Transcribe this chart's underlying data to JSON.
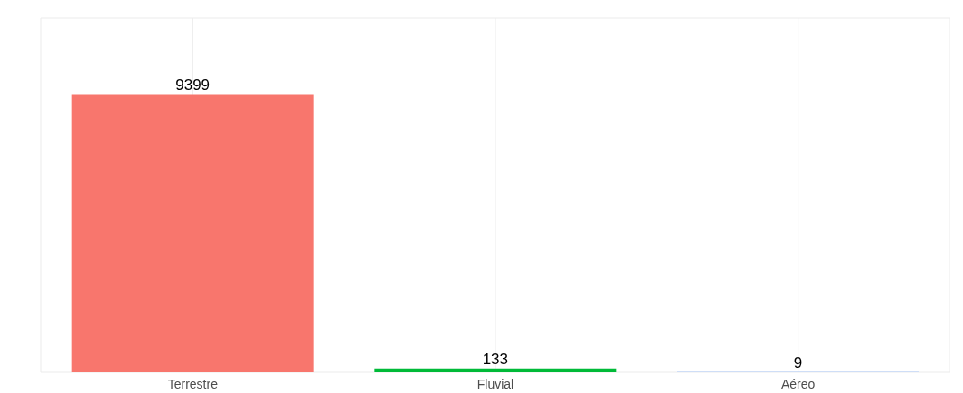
{
  "chart_data": {
    "type": "bar",
    "categories": [
      "Terrestre",
      "Fluvial",
      "Aéreo"
    ],
    "values": [
      9399,
      133,
      9
    ],
    "colors": [
      "#f8766d",
      "#00ba38",
      "#619cff"
    ],
    "data_labels": true,
    "tick_labels": "x",
    "grid": true
  }
}
